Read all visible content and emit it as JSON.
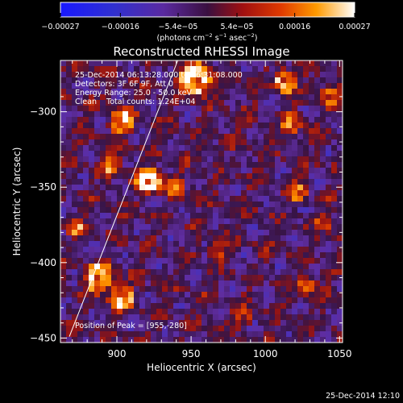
{
  "chart_data": {
    "type": "heatmap",
    "title": "Reconstructed RHESSI Image",
    "xlabel": "Heliocentric X (arcsec)",
    "ylabel": "Heliocentric Y (arcsec)",
    "xlim": [
      862,
      1052
    ],
    "ylim": [
      -453,
      -266
    ],
    "x_ticks": [
      900,
      950,
      1000,
      1050
    ],
    "y_ticks": [
      -300,
      -350,
      -400,
      -450
    ],
    "x_tick_labels": [
      "900",
      "950",
      "1000",
      "1050"
    ],
    "y_tick_labels": [
      "−300",
      "−350",
      "−400",
      "−450"
    ],
    "colorbar": {
      "min": -0.00027,
      "max": 0.00027,
      "tick_values": [
        -0.00027,
        -0.00016,
        -5.4e-05,
        5.4e-05,
        0.00016,
        0.00027
      ],
      "tick_labels": [
        "−0.00027",
        "−0.00016",
        "−5.4e−05",
        "5.4e−05",
        "0.00016",
        "0.00027"
      ],
      "unit_text": "(photons cm",
      "unit_sup1": "−2",
      "unit_mid": " s",
      "unit_sup2": "−1",
      "unit_mid2": " asec",
      "unit_sup3": "−2",
      "unit_end": ")"
    },
    "annotations": [
      "25-Dec-2014 06:13:28.000 to 06:31:08.000",
      "Detectors: 3F 6F 9F, Att 0",
      "Energy Range: 25.0 - 50.0 keV",
      "Clean    Total counts: 1.24E+04"
    ],
    "peak_label": "Position of Peak = [955,-280]",
    "peak": [
      955,
      -280
    ],
    "limb_line": [
      [
        868,
        -449
      ],
      [
        941,
        -266
      ]
    ],
    "sources": [
      {
        "x": 953,
        "y": -279,
        "amp": 1.0,
        "r": 10
      },
      {
        "x": 903,
        "y": -307,
        "amp": 0.75,
        "r": 8
      },
      {
        "x": 922,
        "y": -347,
        "amp": 0.95,
        "r": 8
      },
      {
        "x": 897,
        "y": -335,
        "amp": 0.6,
        "r": 7
      },
      {
        "x": 938,
        "y": -352,
        "amp": 0.55,
        "r": 6
      },
      {
        "x": 888,
        "y": -412,
        "amp": 0.8,
        "r": 9
      },
      {
        "x": 903,
        "y": -425,
        "amp": 0.7,
        "r": 8
      },
      {
        "x": 1013,
        "y": -280,
        "amp": 0.85,
        "r": 7
      },
      {
        "x": 1018,
        "y": -308,
        "amp": 0.55,
        "r": 6
      },
      {
        "x": 1043,
        "y": -290,
        "amp": 0.5,
        "r": 6
      },
      {
        "x": 1022,
        "y": -355,
        "amp": 0.45,
        "r": 6
      },
      {
        "x": 1028,
        "y": -418,
        "amp": 0.55,
        "r": 6
      },
      {
        "x": 1040,
        "y": -375,
        "amp": 0.45,
        "r": 5
      },
      {
        "x": 872,
        "y": -378,
        "amp": 0.5,
        "r": 6
      },
      {
        "x": 985,
        "y": -440,
        "amp": 0.4,
        "r": 6
      },
      {
        "x": 968,
        "y": -395,
        "amp": 0.35,
        "r": 6
      }
    ]
  },
  "footer": {
    "timestamp": "25-Dec-2014 12:10"
  }
}
